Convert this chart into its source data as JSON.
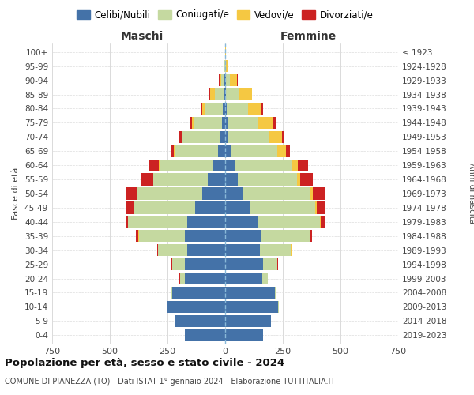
{
  "age_groups": [
    "0-4",
    "5-9",
    "10-14",
    "15-19",
    "20-24",
    "25-29",
    "30-34",
    "35-39",
    "40-44",
    "45-49",
    "50-54",
    "55-59",
    "60-64",
    "65-69",
    "70-74",
    "75-79",
    "80-84",
    "85-89",
    "90-94",
    "95-99",
    "100+"
  ],
  "birth_years": [
    "2019-2023",
    "2014-2018",
    "2009-2013",
    "2004-2008",
    "1999-2003",
    "1994-1998",
    "1989-1993",
    "1984-1988",
    "1979-1983",
    "1974-1978",
    "1969-1973",
    "1964-1968",
    "1959-1963",
    "1954-1958",
    "1949-1953",
    "1944-1948",
    "1939-1943",
    "1934-1938",
    "1929-1933",
    "1924-1928",
    "≤ 1923"
  ],
  "males": {
    "celibi": [
      175,
      215,
      250,
      230,
      175,
      175,
      165,
      175,
      165,
      130,
      100,
      75,
      55,
      30,
      20,
      15,
      10,
      5,
      2,
      0,
      0
    ],
    "coniugati": [
      0,
      0,
      0,
      5,
      20,
      55,
      125,
      200,
      255,
      265,
      280,
      235,
      230,
      190,
      165,
      120,
      75,
      40,
      15,
      3,
      1
    ],
    "vedovi": [
      0,
      0,
      0,
      1,
      1,
      1,
      1,
      1,
      1,
      2,
      2,
      2,
      2,
      2,
      5,
      10,
      15,
      20,
      8,
      1,
      0
    ],
    "divorziati": [
      0,
      0,
      0,
      1,
      1,
      2,
      5,
      10,
      12,
      30,
      45,
      50,
      45,
      10,
      8,
      5,
      5,
      2,
      2,
      0,
      0
    ]
  },
  "females": {
    "nubili": [
      165,
      200,
      230,
      215,
      160,
      165,
      150,
      155,
      145,
      110,
      80,
      55,
      40,
      25,
      15,
      10,
      8,
      5,
      2,
      0,
      0
    ],
    "coniugate": [
      0,
      0,
      2,
      8,
      25,
      60,
      135,
      210,
      265,
      280,
      290,
      255,
      250,
      200,
      175,
      135,
      90,
      55,
      20,
      5,
      1
    ],
    "vedove": [
      0,
      0,
      0,
      0,
      0,
      1,
      2,
      3,
      5,
      8,
      10,
      15,
      25,
      40,
      55,
      65,
      60,
      55,
      30,
      5,
      1
    ],
    "divorziate": [
      0,
      0,
      0,
      1,
      1,
      2,
      5,
      10,
      15,
      35,
      55,
      55,
      45,
      15,
      12,
      8,
      5,
      3,
      2,
      0,
      0
    ]
  },
  "colors": {
    "celibi": "#4472a8",
    "coniugati": "#c5d9a0",
    "vedovi": "#f5c842",
    "divorziati": "#cc2222"
  },
  "xlim": 750,
  "title": "Popolazione per età, sesso e stato civile - 2024",
  "subtitle": "COMUNE DI PIANEZZA (TO) - Dati ISTAT 1° gennaio 2024 - Elaborazione TUTTITALIA.IT",
  "xlabel_left": "Maschi",
  "xlabel_right": "Femmine",
  "ylabel_left": "Fasce di età",
  "ylabel_right": "Anni di nascita"
}
